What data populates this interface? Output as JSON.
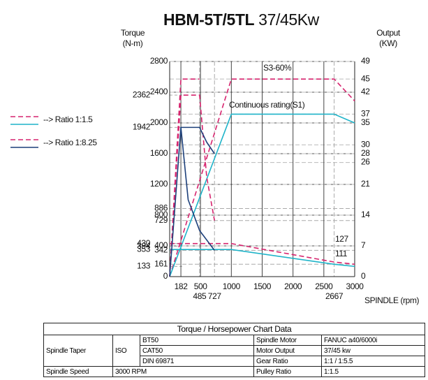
{
  "chart_data": {
    "type": "line",
    "title": "HBM-5T/5TL",
    "subtitle": "37/45Kw",
    "ylabel": [
      "Torque",
      "(N-m)"
    ],
    "y2label": [
      "Output",
      "(KW)"
    ],
    "xlabel": "SPINDLE (rpm)",
    "xlim": [
      0,
      3000
    ],
    "ylim": [
      0,
      2800
    ],
    "y2lim": [
      0,
      49
    ],
    "xticks": [
      182,
      500,
      1000,
      1500,
      2000,
      2500,
      3000
    ],
    "xmarkers": [
      485,
      727,
      2667
    ],
    "yticks": [
      0,
      400,
      800,
      1200,
      1600,
      2000,
      2400,
      2800
    ],
    "yticks_minor": [
      161,
      342,
      729,
      886
    ],
    "ymarkers": [
      133,
      353,
      394,
      430,
      1942,
      2362
    ],
    "y2ticks": [
      0,
      7,
      14,
      21,
      26,
      28,
      30,
      35,
      37,
      42,
      45,
      49
    ],
    "grid": true,
    "annotations": [
      "S3-60%",
      "Continuous rating(S1)",
      "127",
      "111"
    ],
    "legend": [
      {
        "label": "--> Ratio 1:1.5",
        "colors": [
          "#d6246e",
          "#1fb4c9"
        ]
      },
      {
        "label": "--> Ratio 1:8.25",
        "colors": [
          "#d6246e",
          "#1c3f7a"
        ]
      }
    ],
    "series": [
      {
        "color": "#d6246e",
        "dashed": true,
        "axis": "y2",
        "x": [
          0,
          1000,
          2667,
          3000
        ],
        "values": [
          0,
          45,
          45,
          40
        ]
      },
      {
        "color": "#1fb4c9",
        "dashed": false,
        "axis": "y2",
        "x": [
          0,
          1000,
          2667,
          3000
        ],
        "values": [
          0,
          37,
          37,
          35
        ]
      },
      {
        "color": "#d6246e",
        "dashed": true,
        "axis": "y",
        "x": [
          0,
          1000,
          2667,
          3000
        ],
        "values": [
          430,
          430,
          190,
          161
        ]
      },
      {
        "color": "#1fb4c9",
        "dashed": false,
        "axis": "y",
        "x": [
          0,
          1000,
          2667,
          3000
        ],
        "values": [
          353,
          353,
          161,
          133
        ]
      },
      {
        "color": "#d6246e",
        "dashed": true,
        "axis": "y2",
        "x": [
          0,
          182,
          485
        ],
        "values": [
          0,
          45,
          45
        ]
      },
      {
        "color": "#d6246e",
        "dashed": true,
        "axis": "y",
        "x": [
          0,
          182,
          485,
          600,
          727
        ],
        "values": [
          0,
          2362,
          2362,
          1300,
          729
        ]
      },
      {
        "color": "#1c3f7a",
        "dashed": false,
        "axis": "y",
        "x": [
          0,
          182,
          485,
          600,
          727
        ],
        "values": [
          0,
          1942,
          1942,
          1750,
          1600
        ]
      },
      {
        "color": "#1c3f7a",
        "dashed": false,
        "axis": "y",
        "x": [
          182,
          300,
          485,
          727
        ],
        "values": [
          1942,
          1000,
          600,
          342
        ]
      }
    ]
  },
  "table": {
    "title": "Torque / Horsepower Chart Data",
    "rows": [
      [
        "Spindle Taper",
        "ISO",
        "BT50",
        "Spindle Motor",
        "FANUC a40/6000i"
      ],
      [
        "CAT50",
        "Motor Output",
        "37/45 kw"
      ],
      [
        "DIN 69871",
        "Gear Ratio",
        "1:1 / 1:5.5"
      ],
      [
        "Spindle Speed",
        "3000 RPM",
        "Pulley Ratio",
        "1:1.5"
      ]
    ]
  }
}
